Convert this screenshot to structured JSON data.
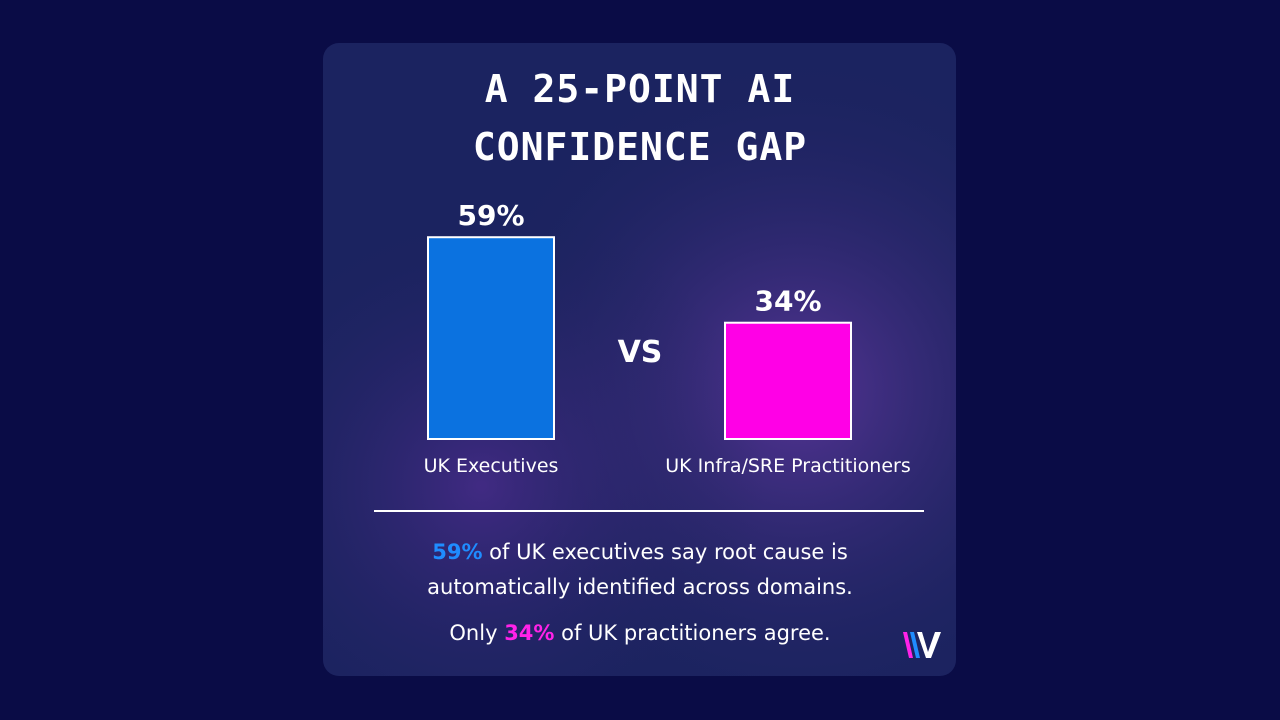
{
  "chart_data": {
    "type": "bar",
    "title_lines": [
      "A 25-POINT AI",
      "CONFIDENCE GAP"
    ],
    "categories": [
      "UK Executives",
      "UK Infra/SRE Practitioners"
    ],
    "values": [
      59,
      34
    ],
    "value_labels": [
      "59%",
      "34%"
    ],
    "colors": [
      "#0b72e0",
      "#ff00e6"
    ],
    "separator": "VS",
    "footer": [
      [
        {
          "text": "59%",
          "color": "#1f8cff"
        },
        {
          "text": " of UK executives say root cause is"
        }
      ],
      [
        {
          "text": "automatically identified across domains."
        }
      ],
      [
        {
          "text": "Only "
        },
        {
          "text": "34%",
          "color": "#ff22e8"
        },
        {
          "text": " of UK practitioners agree."
        }
      ]
    ]
  }
}
